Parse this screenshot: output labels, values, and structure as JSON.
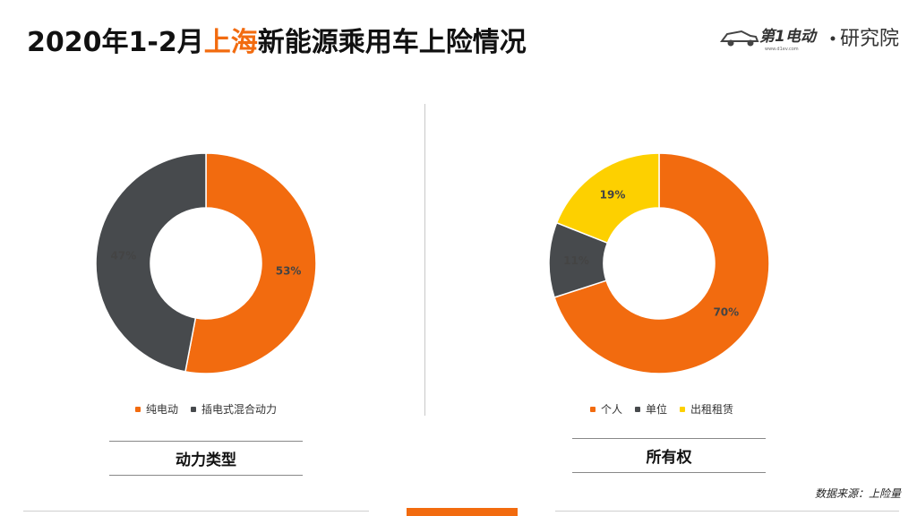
{
  "header": {
    "title_prefix": "2020年1-2月",
    "title_highlight": "上海",
    "title_suffix": "新能源乘用车上险情况",
    "brand_left": "第1电动",
    "brand_right": "研究院",
    "brand_url": "www.d1ev.com"
  },
  "colors": {
    "orange": "#f26b0f",
    "dark_gray": "#474a4d",
    "yellow": "#fdd000"
  },
  "chart_data": [
    {
      "type": "pie",
      "series": [
        {
          "name": "纯电动",
          "value": 53,
          "label": "53%",
          "color": "#f26b0f"
        },
        {
          "name": "插电式混合动力",
          "value": 47,
          "label": "47%",
          "color": "#474a4d"
        }
      ],
      "caption": "动力类型",
      "legend_position": "bottom"
    },
    {
      "type": "pie",
      "series": [
        {
          "name": "个人",
          "value": 70,
          "label": "70%",
          "color": "#f26b0f"
        },
        {
          "name": "单位",
          "value": 11,
          "label": "11%",
          "color": "#474a4d"
        },
        {
          "name": "出租租赁",
          "value": 19,
          "label": "19%",
          "color": "#fdd000"
        }
      ],
      "caption": "所有权",
      "legend_position": "bottom"
    }
  ],
  "footer": {
    "source": "数据来源：上险量"
  }
}
